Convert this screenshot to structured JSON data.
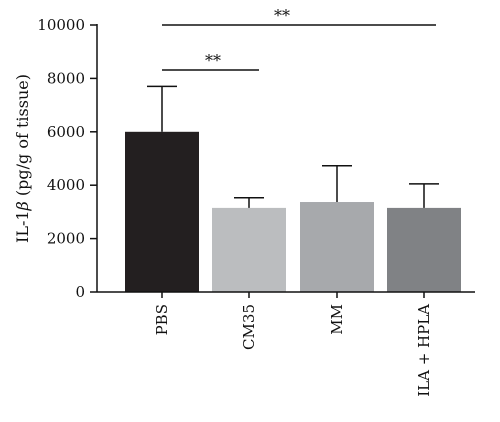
{
  "chart_data": {
    "type": "bar",
    "categories": [
      "PBS",
      "CM35",
      "MM",
      "ILA + HPLA"
    ],
    "values": [
      6000,
      3150,
      3370,
      3150
    ],
    "error_upper": [
      7700,
      3530,
      4730,
      4050
    ],
    "colors": [
      "#231f20",
      "#bbbdbf",
      "#a7a9ac",
      "#808285"
    ],
    "ylabel_prefix": "IL-1",
    "ylabel_symbol": "β",
    "ylabel_suffix": " (pg/g of tissue)",
    "ylim": [
      0,
      10000
    ],
    "yticks": [
      0,
      2000,
      4000,
      6000,
      8000,
      10000
    ],
    "ytick_labels": [
      "0",
      "2000",
      "4000",
      "6000",
      "8000",
      "10000"
    ],
    "grid": false,
    "significance": [
      {
        "from": "PBS",
        "to": "ILA + HPLA",
        "label": "**"
      },
      {
        "from": "PBS",
        "to": "CM35",
        "label": "**"
      }
    ]
  }
}
